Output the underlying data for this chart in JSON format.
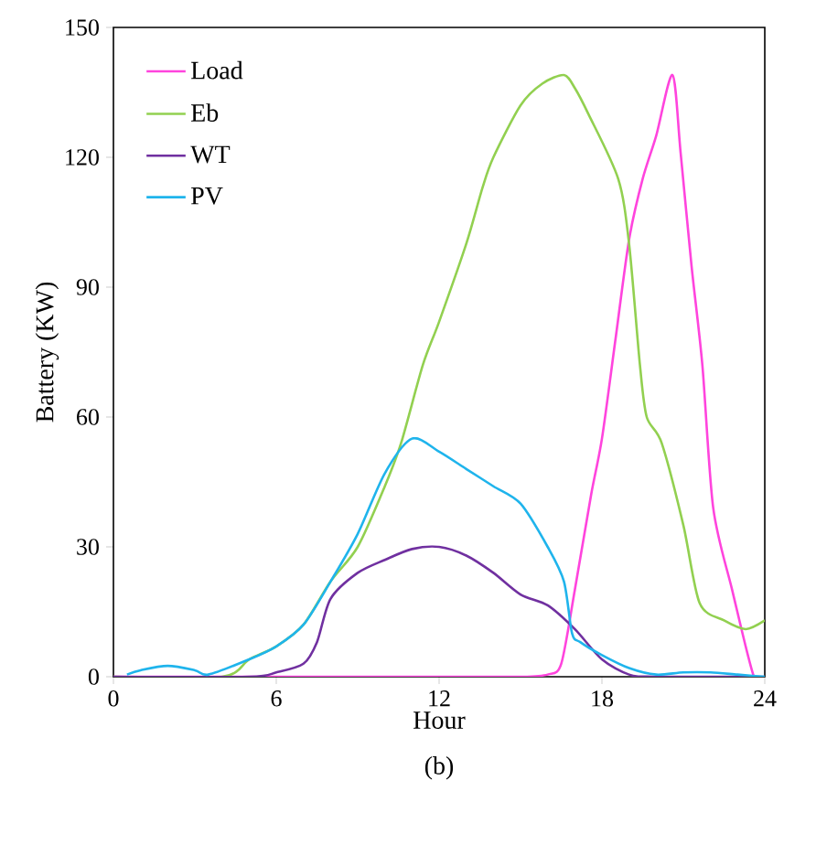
{
  "chart_data": {
    "type": "line",
    "xlabel": "Hour",
    "ylabel": "Battery (KW)",
    "annotations": [
      "(b)"
    ],
    "legend": "top left",
    "marker": "none",
    "line_style": "solid",
    "grid": false,
    "xlim": [
      0,
      24
    ],
    "ylim": [
      0,
      150
    ],
    "xticks": [
      0,
      6,
      12,
      18,
      24
    ],
    "yticks": [
      0,
      30,
      60,
      90,
      120,
      150
    ],
    "series": [
      {
        "name": "Load",
        "color": "#ff44dd",
        "x": [
          0,
          4,
          8,
          12,
          15,
          16,
          16.5,
          17,
          17.6,
          18,
          18.5,
          19,
          19.5,
          20,
          20.6,
          20.9,
          21.3,
          21.7,
          22.1,
          22.8,
          23.6,
          24
        ],
        "values": [
          0,
          0,
          0,
          0,
          0,
          0.5,
          3,
          20,
          42,
          55,
          78,
          101,
          115,
          125,
          139,
          121,
          95,
          72,
          39,
          20,
          0,
          0
        ]
      },
      {
        "name": "Eb",
        "color": "#92d050",
        "x": [
          0,
          4,
          5,
          6,
          7,
          8,
          9,
          10,
          10.6,
          11.4,
          12,
          13,
          13.6,
          14,
          15,
          15.8,
          16.6,
          17,
          17.5,
          18.6,
          19,
          19.4,
          19.65,
          20.2,
          21,
          21.6,
          22.5,
          23.3,
          24
        ],
        "values": [
          0,
          0,
          4,
          7,
          12,
          22,
          30,
          44,
          54,
          72,
          82,
          100,
          113,
          120,
          132,
          137,
          139,
          136,
          130,
          115,
          100,
          72,
          60,
          54,
          35,
          17,
          13,
          11,
          13
        ]
      },
      {
        "name": "WT",
        "color": "#7030a0",
        "x": [
          0,
          5,
          6,
          7,
          7.5,
          8,
          9,
          10,
          11,
          12,
          13,
          14,
          15,
          16,
          17,
          18,
          19,
          20,
          24
        ],
        "values": [
          0,
          0,
          1,
          3,
          8,
          18,
          24,
          27,
          29.5,
          30,
          28,
          24,
          19,
          16.5,
          11,
          4,
          0.5,
          0,
          0
        ]
      },
      {
        "name": "PV",
        "color": "#1fb4ec",
        "x": [
          0.5,
          1,
          2,
          3,
          3.5,
          5,
          6,
          7,
          8,
          9,
          10,
          11,
          12,
          13,
          14,
          15,
          16,
          16.6,
          16.9,
          17.2,
          18,
          19,
          20,
          21,
          22,
          23,
          24
        ],
        "values": [
          0.5,
          1.5,
          2.5,
          1.5,
          0.5,
          4,
          7,
          12,
          22,
          33,
          47,
          55,
          52,
          48,
          44,
          40,
          30,
          22,
          10,
          8,
          5,
          2,
          0.5,
          1,
          1,
          0.5,
          0
        ]
      }
    ]
  }
}
